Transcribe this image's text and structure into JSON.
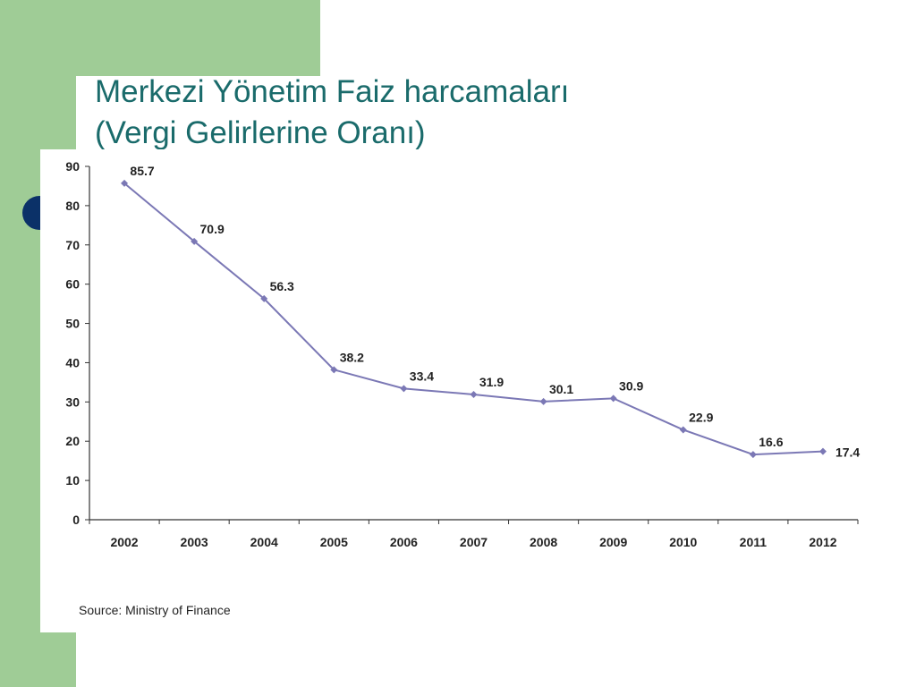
{
  "slide": {
    "title_line1": "Merkezi Yönetim Faiz harcamaları",
    "title_line2": "(Vergi Gelirlerine Oranı)"
  },
  "colors": {
    "accent_green": "#9fcc96",
    "title_teal": "#1a6b6b",
    "bullet_navy": "#0b3168",
    "series_line": "#7b78b5"
  },
  "chart_data": {
    "type": "line",
    "x": [
      "2002",
      "2003",
      "2004",
      "2005",
      "2006",
      "2007",
      "2008",
      "2009",
      "2010",
      "2011",
      "2012"
    ],
    "series": [
      {
        "values": [
          85.7,
          70.9,
          56.3,
          38.2,
          33.4,
          31.9,
          30.1,
          30.9,
          22.9,
          16.6,
          17.4
        ]
      }
    ],
    "data_labels": [
      "85.7",
      "70.9",
      "56.3",
      "38.2",
      "33.4",
      "31.9",
      "30.1",
      "30.9",
      "22.9",
      "16.6",
      "17.4"
    ],
    "y_ticks": [
      0,
      10,
      20,
      30,
      40,
      50,
      60,
      70,
      80,
      90
    ],
    "ylim": [
      0,
      90
    ],
    "grid": false,
    "source": "Source: Ministry of Finance"
  }
}
